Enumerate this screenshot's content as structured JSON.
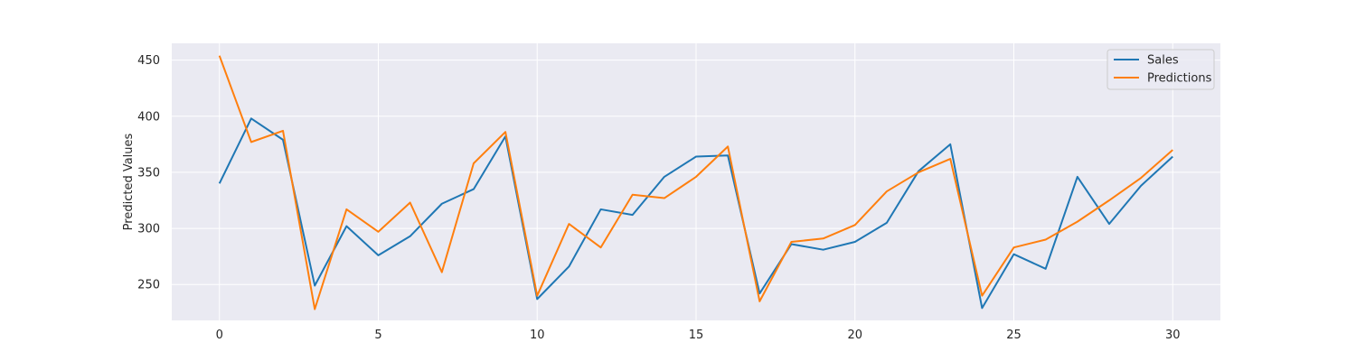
{
  "chart_data": {
    "type": "line",
    "title": "",
    "xlabel": "",
    "ylabel": "Predicted Values",
    "xlim": [
      -1.5,
      31.5
    ],
    "ylim": [
      218,
      465
    ],
    "xticks": [
      0,
      5,
      10,
      15,
      20,
      25,
      30
    ],
    "yticks": [
      250,
      300,
      350,
      400,
      450
    ],
    "grid": true,
    "legend_position": "top-right",
    "background": "#eaeaf2",
    "x": [
      0,
      1,
      2,
      3,
      4,
      5,
      6,
      7,
      8,
      9,
      10,
      11,
      12,
      13,
      14,
      15,
      16,
      17,
      18,
      19,
      20,
      21,
      22,
      23,
      24,
      25,
      26,
      27,
      28,
      29,
      30
    ],
    "series": [
      {
        "name": "Sales",
        "color": "#1f77b4",
        "values": [
          340,
          398,
          379,
          249,
          302,
          276,
          293,
          322,
          335,
          382,
          237,
          266,
          317,
          312,
          346,
          364,
          365,
          242,
          286,
          281,
          288,
          305,
          351,
          375,
          229,
          277,
          264,
          346,
          304,
          338,
          364
        ]
      },
      {
        "name": "Predictions",
        "color": "#ff7f0e",
        "values": [
          454,
          377,
          387,
          228,
          317,
          297,
          323,
          261,
          358,
          386,
          240,
          304,
          283,
          330,
          327,
          346,
          373,
          235,
          288,
          291,
          303,
          333,
          350,
          362,
          240,
          283,
          290,
          306,
          325,
          345,
          370
        ]
      }
    ]
  }
}
